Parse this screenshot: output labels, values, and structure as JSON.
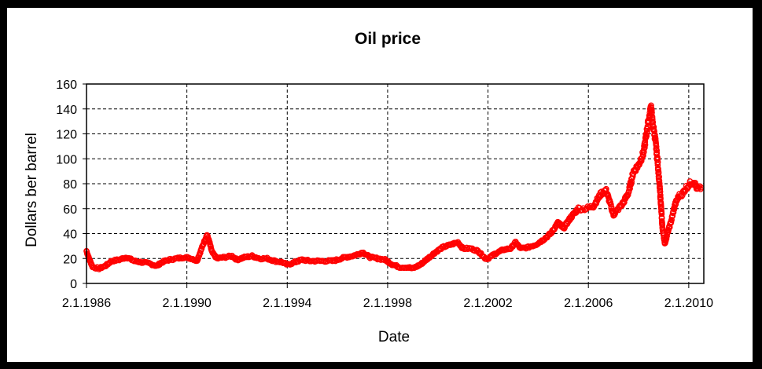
{
  "chart_data": {
    "type": "scatter",
    "title": "Oil price",
    "xlabel": "Date",
    "ylabel": "Dollars ber barrel",
    "x_ticks": [
      "2.1.1986",
      "2.1.1990",
      "2.1.1994",
      "2.1.1998",
      "2.1.2002",
      "2.1.2006",
      "2.1.2010"
    ],
    "x_tick_years": [
      1986,
      1990,
      1994,
      1998,
      2002,
      2006,
      2010
    ],
    "xlim": [
      1986,
      2010.6
    ],
    "ylim": [
      0,
      160
    ],
    "y_ticks": [
      0,
      20,
      40,
      60,
      80,
      100,
      120,
      140,
      160
    ],
    "grid": true,
    "marker": "hollow-circle",
    "series": [
      {
        "color": "#ff0000",
        "points": [
          [
            1986.0,
            26
          ],
          [
            1986.1,
            20
          ],
          [
            1986.25,
            13
          ],
          [
            1986.5,
            12
          ],
          [
            1986.75,
            14
          ],
          [
            1987.0,
            18
          ],
          [
            1987.3,
            19
          ],
          [
            1987.6,
            21
          ],
          [
            1987.9,
            18
          ],
          [
            1988.2,
            17
          ],
          [
            1988.5,
            16
          ],
          [
            1988.8,
            14
          ],
          [
            1989.0,
            17
          ],
          [
            1989.3,
            19
          ],
          [
            1989.6,
            20
          ],
          [
            1989.9,
            21
          ],
          [
            1990.2,
            20
          ],
          [
            1990.4,
            18
          ],
          [
            1990.55,
            26
          ],
          [
            1990.7,
            34
          ],
          [
            1990.8,
            39
          ],
          [
            1990.9,
            33
          ],
          [
            1991.0,
            25
          ],
          [
            1991.2,
            20
          ],
          [
            1991.5,
            21
          ],
          [
            1991.8,
            22
          ],
          [
            1992.0,
            19
          ],
          [
            1992.3,
            21
          ],
          [
            1992.6,
            22
          ],
          [
            1992.9,
            20
          ],
          [
            1993.2,
            20
          ],
          [
            1993.5,
            18
          ],
          [
            1993.8,
            17
          ],
          [
            1994.0,
            15
          ],
          [
            1994.3,
            17
          ],
          [
            1994.6,
            19
          ],
          [
            1994.9,
            18
          ],
          [
            1995.2,
            18
          ],
          [
            1995.5,
            18
          ],
          [
            1995.8,
            18
          ],
          [
            1996.0,
            19
          ],
          [
            1996.3,
            21
          ],
          [
            1996.6,
            22
          ],
          [
            1996.9,
            24
          ],
          [
            1997.0,
            25
          ],
          [
            1997.3,
            21
          ],
          [
            1997.6,
            20
          ],
          [
            1997.9,
            19
          ],
          [
            1998.2,
            15
          ],
          [
            1998.5,
            13
          ],
          [
            1998.8,
            13
          ],
          [
            1999.0,
            12
          ],
          [
            1999.3,
            15
          ],
          [
            1999.6,
            20
          ],
          [
            1999.9,
            25
          ],
          [
            2000.2,
            29
          ],
          [
            2000.5,
            31
          ],
          [
            2000.8,
            33
          ],
          [
            2001.0,
            28
          ],
          [
            2001.3,
            28
          ],
          [
            2001.6,
            26
          ],
          [
            2001.9,
            20
          ],
          [
            2002.0,
            20
          ],
          [
            2002.3,
            24
          ],
          [
            2002.6,
            27
          ],
          [
            2002.9,
            28
          ],
          [
            2003.1,
            33
          ],
          [
            2003.3,
            28
          ],
          [
            2003.6,
            29
          ],
          [
            2003.9,
            31
          ],
          [
            2004.2,
            35
          ],
          [
            2004.5,
            40
          ],
          [
            2004.8,
            49
          ],
          [
            2005.0,
            44
          ],
          [
            2005.3,
            53
          ],
          [
            2005.6,
            60
          ],
          [
            2005.9,
            60
          ],
          [
            2006.2,
            62
          ],
          [
            2006.5,
            72
          ],
          [
            2006.7,
            75
          ],
          [
            2006.9,
            62
          ],
          [
            2007.0,
            55
          ],
          [
            2007.2,
            60
          ],
          [
            2007.4,
            65
          ],
          [
            2007.6,
            73
          ],
          [
            2007.8,
            90
          ],
          [
            2008.0,
            95
          ],
          [
            2008.2,
            105
          ],
          [
            2008.35,
            125
          ],
          [
            2008.5,
            142
          ],
          [
            2008.55,
            130
          ],
          [
            2008.65,
            118
          ],
          [
            2008.75,
            100
          ],
          [
            2008.85,
            75
          ],
          [
            2008.95,
            45
          ],
          [
            2009.0,
            38
          ],
          [
            2009.05,
            32
          ],
          [
            2009.15,
            40
          ],
          [
            2009.3,
            50
          ],
          [
            2009.45,
            63
          ],
          [
            2009.6,
            70
          ],
          [
            2009.75,
            72
          ],
          [
            2009.9,
            77
          ],
          [
            2010.05,
            80
          ],
          [
            2010.2,
            82
          ],
          [
            2010.35,
            75
          ],
          [
            2010.5,
            77
          ]
        ]
      }
    ]
  }
}
